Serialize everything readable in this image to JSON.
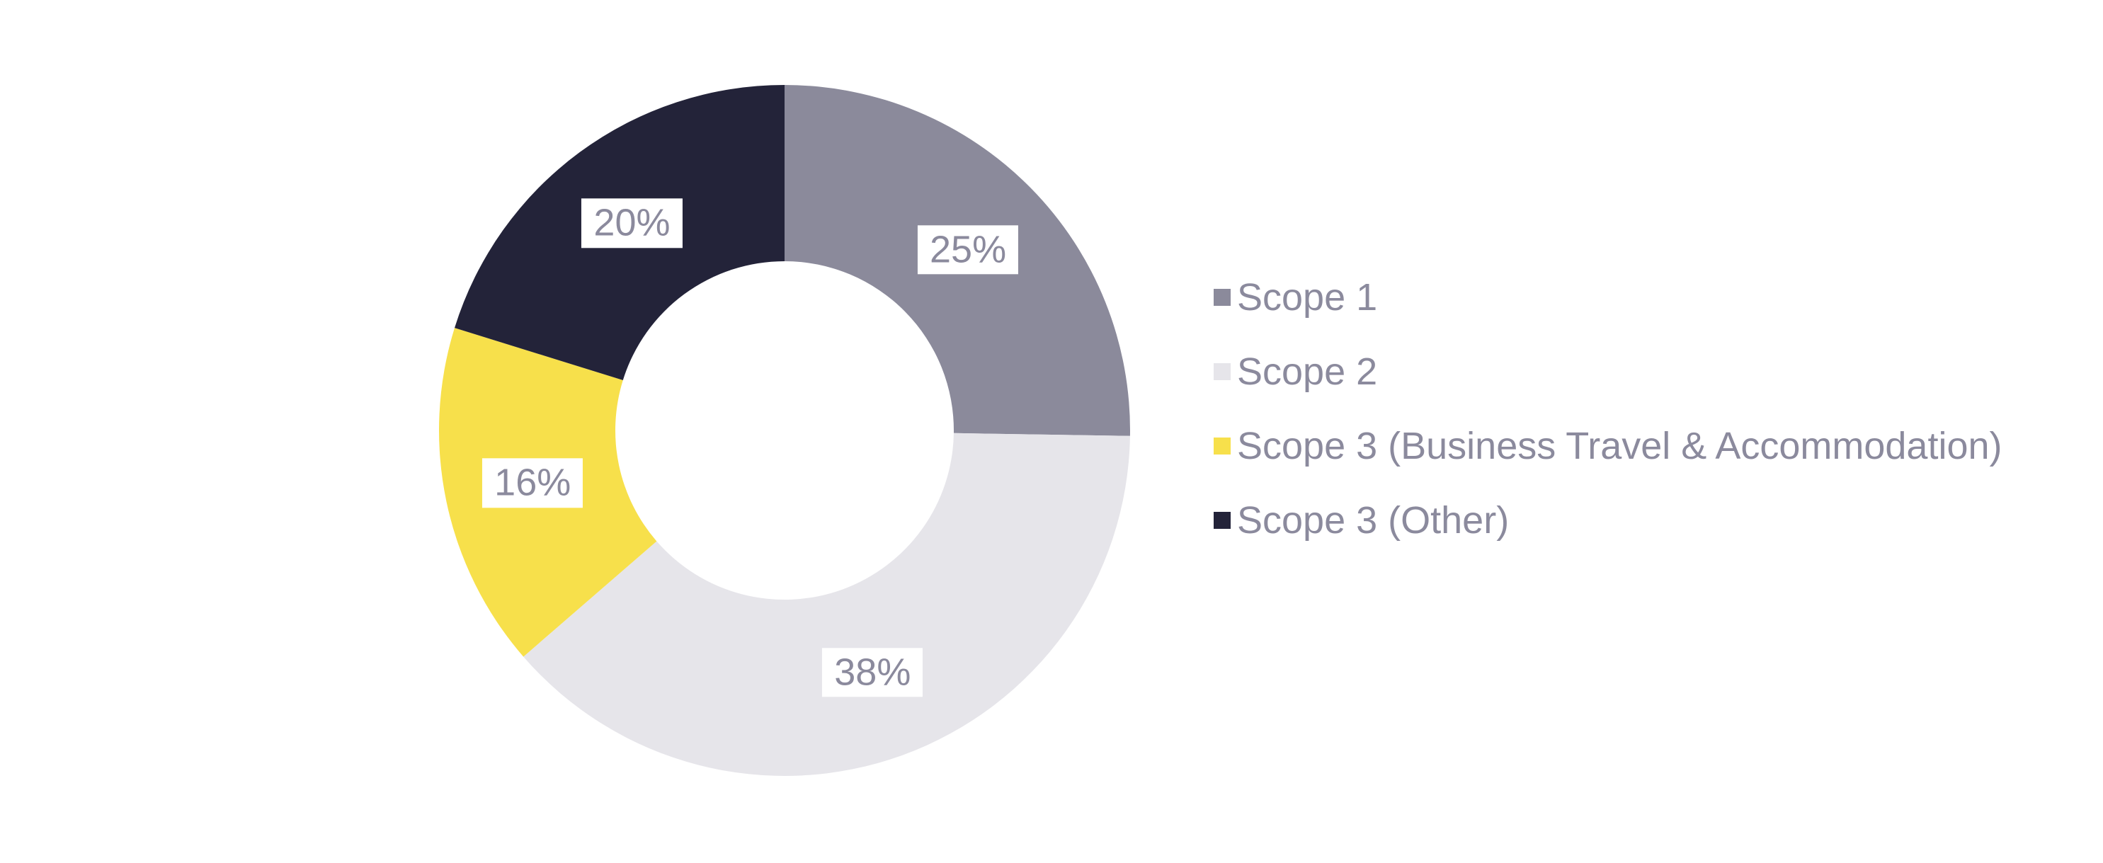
{
  "background_color": "#ffffff",
  "chart_data": {
    "type": "pie",
    "subtype": "donut",
    "title": "",
    "categories": [
      "Scope 1",
      "Scope 2",
      "Scope 3 (Business Travel & Accommodation)",
      "Scope 3 (Other)"
    ],
    "values": [
      25,
      38,
      16,
      20
    ],
    "value_labels": [
      "25%",
      "38%",
      "16%",
      "20%"
    ],
    "colors": [
      "#8B8A9B",
      "#E6E5EA",
      "#F7E04B",
      "#232339"
    ],
    "legend_position": "right",
    "start_angle_deg": 0,
    "direction": "clockwise",
    "inner_radius_ratio": 0.49,
    "label_text_color": "#8B8A9D",
    "label_background_color": "#ffffff",
    "legend_text_color": "#8B8A9D"
  }
}
